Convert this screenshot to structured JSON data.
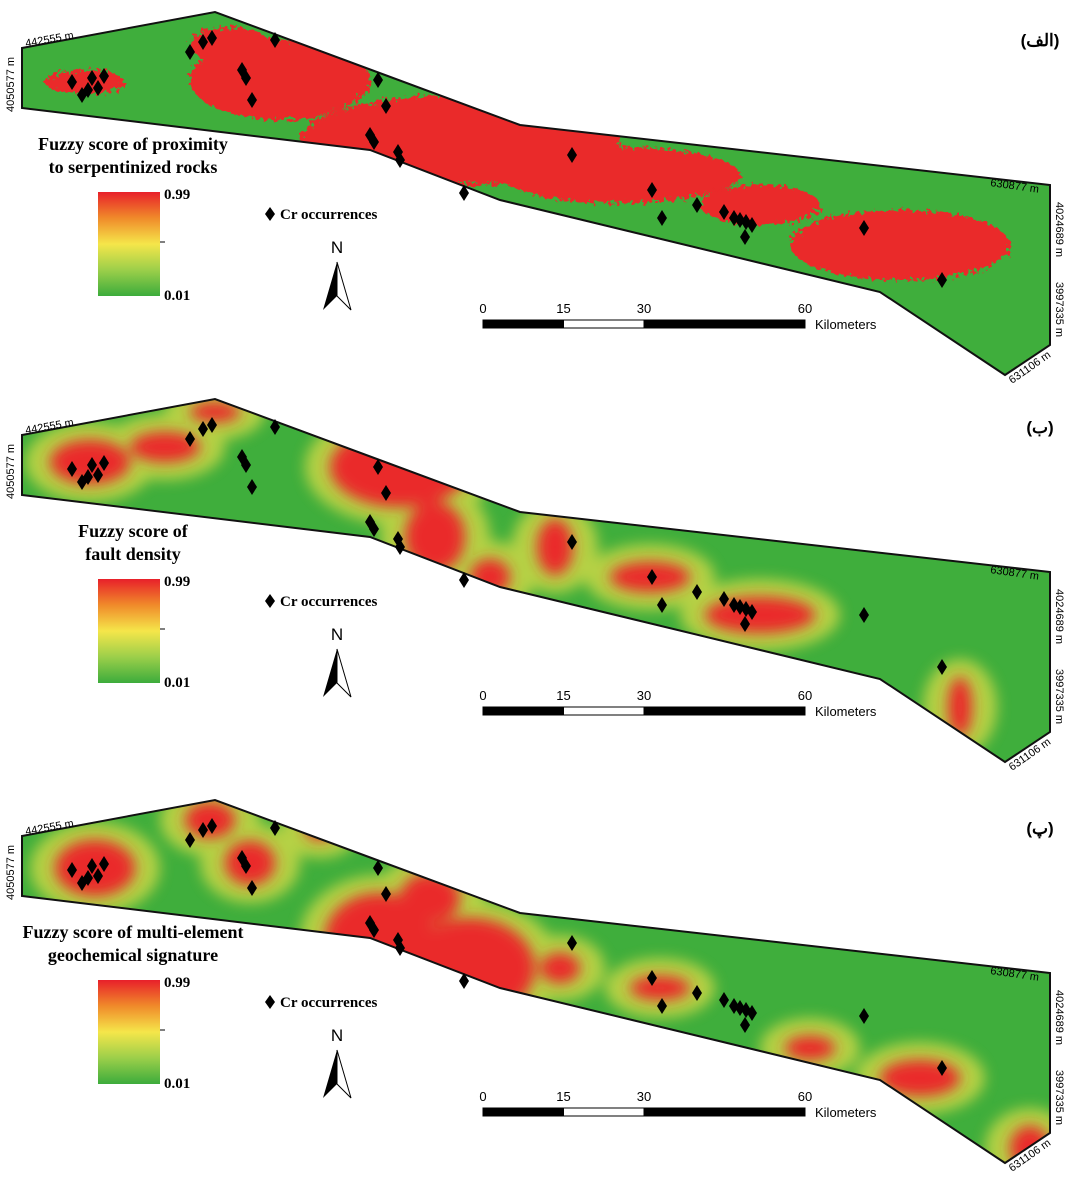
{
  "panels": [
    {
      "label": "(الف)",
      "legend": {
        "title": [
          "Fuzzy score of proximity",
          "to serpentinized rocks"
        ],
        "max": 0.99,
        "min": 0.01
      },
      "occurrences_label": "Cr occurrences",
      "north": "N",
      "scale": {
        "ticks": [
          0,
          15,
          30,
          60
        ],
        "unit": "Kilometers"
      },
      "coordinates": {
        "top_left": "442555 m",
        "left": "4050577 m",
        "right_top": "630877 m",
        "right_upper": "4024689 m",
        "right_lower": "3997335 m",
        "bottom_right": "631106 m"
      }
    },
    {
      "label": "(ب)",
      "legend": {
        "title": [
          "Fuzzy score of",
          "fault density"
        ],
        "max": 0.99,
        "min": 0.01
      },
      "occurrences_label": "Cr occurrences",
      "north": "N",
      "scale": {
        "ticks": [
          0,
          15,
          30,
          60
        ],
        "unit": "Kilometers"
      },
      "coordinates": {
        "top_left": "442555 m",
        "left": "4050577 m",
        "right_top": "630877 m",
        "right_upper": "4024689 m",
        "right_lower": "3997335 m",
        "bottom_right": "631106 m"
      }
    },
    {
      "label": "(پ)",
      "legend": {
        "title": [
          "Fuzzy score of multi-element",
          "geochemical signature"
        ],
        "max": 0.99,
        "min": 0.01
      },
      "occurrences_label": "Cr occurrences",
      "north": "N",
      "scale": {
        "ticks": [
          0,
          15,
          30,
          60
        ],
        "unit": "Kilometers"
      },
      "coordinates": {
        "top_left": "442555 m",
        "left": "4050577 m",
        "right_top": "630877 m",
        "right_upper": "4024689 m",
        "right_lower": "3997335 m",
        "bottom_right": "631106 m"
      }
    }
  ]
}
